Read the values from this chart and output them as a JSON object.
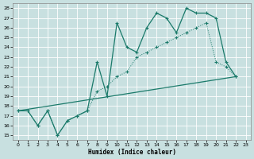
{
  "xlabel": "Humidex (Indice chaleur)",
  "xlim": [
    -0.5,
    23.5
  ],
  "ylim": [
    14.5,
    28.5
  ],
  "yticks": [
    15,
    16,
    17,
    18,
    19,
    20,
    21,
    22,
    23,
    24,
    25,
    26,
    27,
    28
  ],
  "xticks": [
    0,
    1,
    2,
    3,
    4,
    5,
    6,
    7,
    8,
    9,
    10,
    11,
    12,
    13,
    14,
    15,
    16,
    17,
    18,
    19,
    20,
    21,
    22,
    23
  ],
  "bg_color": "#c8e0e0",
  "line_color": "#1a7a6a",
  "grid_color": "#b8d4d4",
  "curve1_x": [
    0,
    1,
    2,
    3,
    4,
    5,
    6,
    7,
    8,
    9,
    10,
    11,
    12,
    13,
    14,
    15,
    16,
    17,
    18,
    19,
    20,
    21,
    22
  ],
  "curve1_y": [
    17.5,
    17.5,
    16.0,
    17.5,
    15.0,
    16.5,
    17.0,
    17.5,
    22.5,
    19.0,
    26.5,
    24.0,
    23.5,
    26.0,
    27.5,
    27.0,
    25.5,
    28.0,
    27.5,
    27.5,
    27.0,
    22.5,
    21.0
  ],
  "curve2_x": [
    0,
    1,
    2,
    3,
    4,
    5,
    6,
    7,
    8,
    9,
    10,
    11,
    12,
    13,
    14,
    15,
    16,
    17,
    18,
    19,
    20,
    21,
    22
  ],
  "curve2_y": [
    17.5,
    17.5,
    16.0,
    17.5,
    15.0,
    16.5,
    17.0,
    17.5,
    19.5,
    20.0,
    21.0,
    21.5,
    23.0,
    23.5,
    24.0,
    24.5,
    25.0,
    25.5,
    26.0,
    26.5,
    22.5,
    22.0,
    21.0
  ],
  "curve3_x": [
    0,
    22
  ],
  "curve3_y": [
    17.5,
    21.0
  ]
}
